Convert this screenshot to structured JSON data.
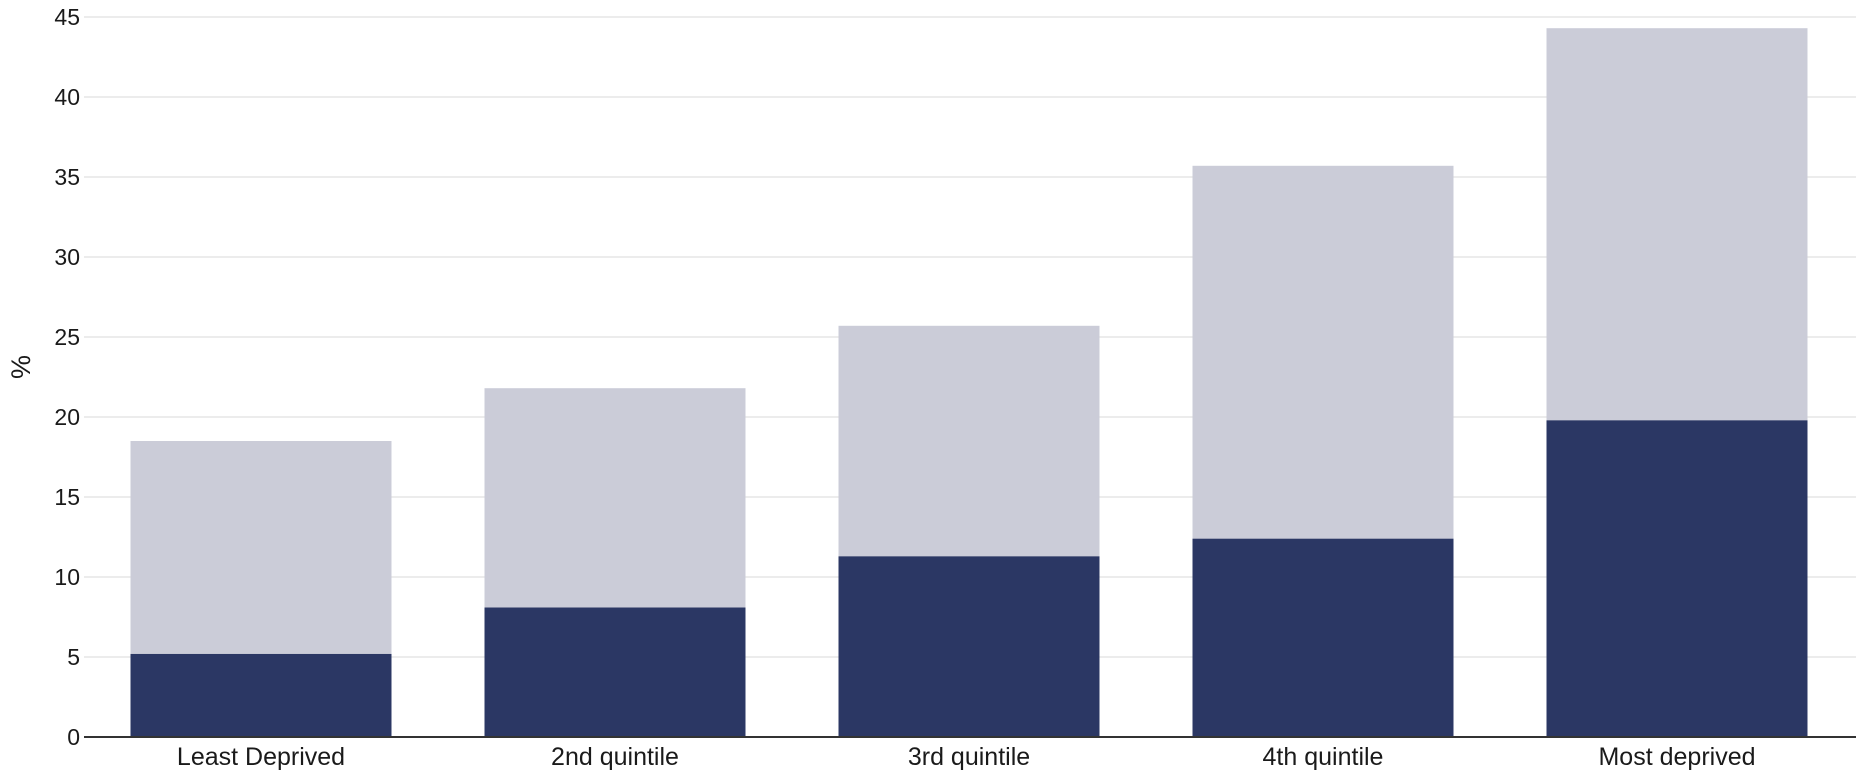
{
  "chart_data": {
    "type": "bar",
    "stacked": true,
    "title": "",
    "xlabel": "",
    "ylabel": "%",
    "ylim": [
      0,
      45
    ],
    "yticks": [
      0,
      5,
      10,
      15,
      20,
      25,
      30,
      35,
      40,
      45
    ],
    "grid": true,
    "legend": "none",
    "categories": [
      "Least Deprived",
      "2nd quintile",
      "3rd quintile",
      "4th quintile",
      "Most deprived"
    ],
    "series": [
      {
        "color": "#2b3764",
        "values": [
          5.2,
          8.1,
          11.3,
          12.4,
          19.8
        ]
      },
      {
        "color": "#cbccd8",
        "values": [
          13.3,
          13.7,
          14.4,
          23.3,
          24.5
        ]
      }
    ]
  }
}
